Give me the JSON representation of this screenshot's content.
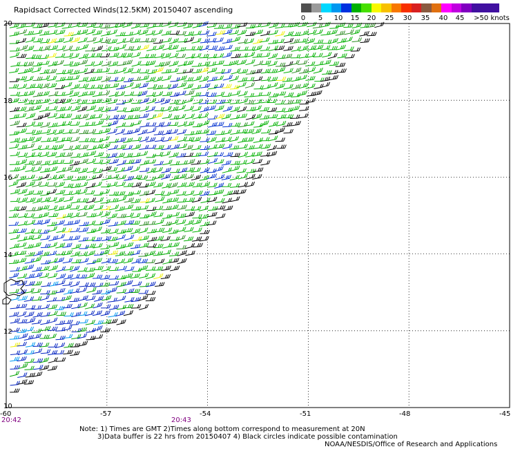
{
  "title": "Rapidsact Corrected Winds(12.5KM) 20150407 ascending",
  "legend": {
    "labels": [
      "0",
      "5",
      "10",
      "15",
      "20",
      "25",
      "30",
      "35",
      "40",
      "45",
      ">50 knots"
    ],
    "colors": [
      "#505050",
      "#9a9a9a",
      "#00d8ff",
      "#0098f0",
      "#0030e0",
      "#00b000",
      "#46e000",
      "#f8f800",
      "#f8c000",
      "#f87800",
      "#f83000",
      "#d82020",
      "#8a5a40",
      "#e07010",
      "#ff00ff",
      "#c000e0",
      "#8000c0",
      "#4010a0"
    ]
  },
  "axes": {
    "x_ticks": [
      "-60",
      "-57",
      "-54",
      "-51",
      "-48",
      "-45"
    ],
    "y_ticks": [
      "20",
      "18",
      "16",
      "14",
      "12",
      "10"
    ],
    "times": [
      "20:42",
      "20:43"
    ]
  },
  "notes": {
    "line1": "Note: 1) Times are GMT 2)Times along bottom correspond to measurement at 20N",
    "line2": "3)Data buffer is 22 hrs from 20150407 4) Black circles indicate possible contamination",
    "credit": "NOAA/NESDIS/Office of Research and Applications"
  },
  "map_data": {
    "lon_range": [
      -60,
      -45
    ],
    "lat_range": [
      10,
      20
    ],
    "swath_edge": [
      [
        -60,
        10.2
      ],
      [
        -55.9,
        12.6
      ],
      [
        -52.6,
        15.9
      ],
      [
        -50.6,
        18.2
      ],
      [
        -48.7,
        20.0
      ]
    ],
    "grid": "dotted",
    "coastline": "island near -60, 13",
    "wind_speed_units": "knots",
    "barb_direction": "from east (trade winds)"
  }
}
